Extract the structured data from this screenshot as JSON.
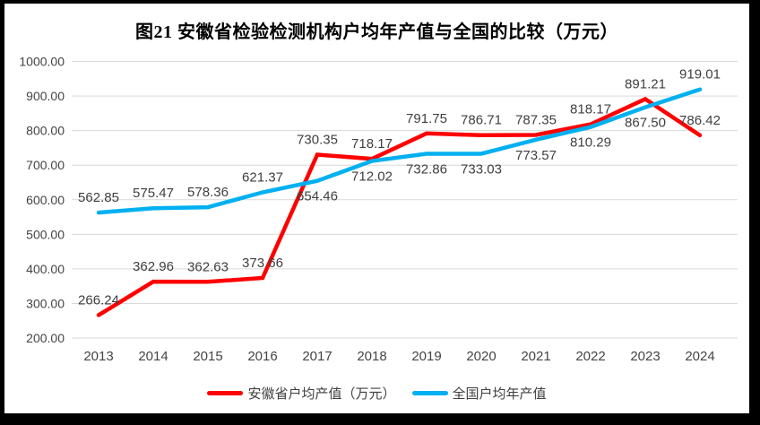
{
  "title": "图21 安徽省检验检测机构户均年产值与全国的比较（万元）",
  "legend": [
    {
      "label": "安徽省户均产值（万元）",
      "color": "#FF0000"
    },
    {
      "label": "全国户均年产值",
      "color": "#00B0F0"
    }
  ],
  "chart_data": {
    "type": "line",
    "title": "图21 安徽省检验检测机构户均年产值与全国的比较（万元）",
    "categories": [
      "2013",
      "2014",
      "2015",
      "2016",
      "2017",
      "2018",
      "2019",
      "2020",
      "2021",
      "2022",
      "2023",
      "2024"
    ],
    "series": [
      {
        "name": "安徽省户均产值（万元）",
        "color": "#FF0000",
        "values": [
          266.24,
          362.96,
          362.63,
          373.66,
          730.35,
          718.17,
          791.75,
          786.71,
          787.35,
          818.17,
          891.21,
          786.42
        ],
        "label_side": [
          "above",
          "above",
          "above",
          "above",
          "above",
          "above",
          "above",
          "above",
          "above",
          "above",
          "above",
          "above"
        ]
      },
      {
        "name": "全国户均年产值",
        "color": "#00B0F0",
        "values": [
          562.85,
          575.47,
          578.36,
          621.37,
          654.46,
          712.02,
          732.86,
          733.03,
          773.57,
          810.29,
          867.5,
          919.01
        ],
        "label_side": [
          "above",
          "above",
          "above",
          "above",
          "below",
          "below",
          "below",
          "below",
          "below",
          "below",
          "below",
          "above"
        ]
      }
    ],
    "xlabel": "",
    "ylabel": "",
    "ylim": [
      200,
      1000
    ],
    "yticks": [
      "200.00",
      "300.00",
      "400.00",
      "500.00",
      "600.00",
      "700.00",
      "800.00",
      "900.00",
      "1000.00"
    ],
    "value_label_format": "2dp",
    "grid": true,
    "legend_position": "bottom",
    "colors": {
      "grid_line": "#D9D9D9",
      "axis_text": "#444444",
      "data_label": "#3F3F3F"
    }
  }
}
